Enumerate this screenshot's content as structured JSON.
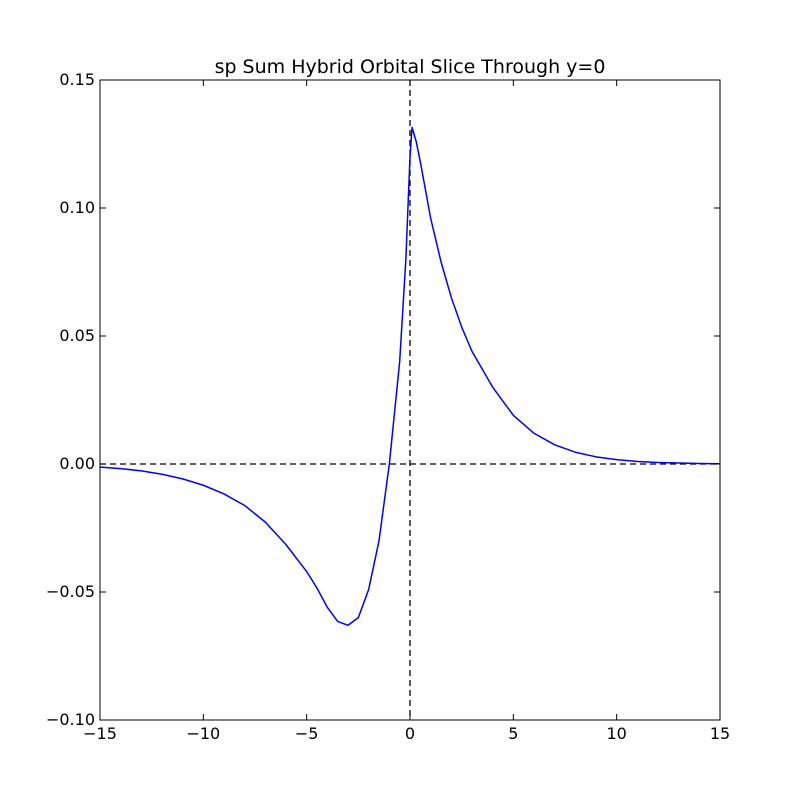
{
  "chart_data": {
    "type": "line",
    "title": "sp Sum Hybrid Orbital Slice Through y=0",
    "xlabel": "",
    "ylabel": "",
    "xlim": [
      -15,
      15
    ],
    "ylim": [
      -0.1,
      0.15
    ],
    "x_ticks": [
      -15,
      -10,
      -5,
      0,
      5,
      10,
      15
    ],
    "x_tick_labels": [
      "−15",
      "−10",
      "−5",
      "0",
      "5",
      "10",
      "15"
    ],
    "y_ticks": [
      -0.1,
      -0.05,
      0.0,
      0.05,
      0.1,
      0.15
    ],
    "y_tick_labels": [
      "−0.10",
      "−0.05",
      "0.00",
      "0.05",
      "0.10",
      "0.15"
    ],
    "grid": false,
    "reference_lines": [
      {
        "orientation": "horizontal",
        "value": 0,
        "style": "dashed",
        "color": "#000000"
      },
      {
        "orientation": "vertical",
        "value": 0,
        "style": "dashed",
        "color": "#000000"
      }
    ],
    "series": [
      {
        "color": "#0000ff",
        "x": [
          -15,
          -14,
          -13,
          -12,
          -11,
          -10,
          -9,
          -8,
          -7,
          -6,
          -5,
          -4.5,
          -4,
          -3.5,
          -3,
          -2.5,
          -2,
          -1.5,
          -1,
          -0.5,
          -0.2,
          0,
          0.1,
          0.3,
          0.5,
          1,
          1.5,
          2,
          2.5,
          3,
          4,
          5,
          6,
          7,
          8,
          9,
          10,
          11,
          12,
          13,
          14,
          15
        ],
        "y": [
          -0.0012,
          -0.0018,
          -0.0027,
          -0.004,
          -0.0058,
          -0.0083,
          -0.0117,
          -0.0162,
          -0.0227,
          -0.0315,
          -0.042,
          -0.0485,
          -0.056,
          -0.0615,
          -0.063,
          -0.06,
          -0.049,
          -0.03,
          0.0,
          0.04,
          0.08,
          0.12,
          0.1315,
          0.126,
          0.118,
          0.096,
          0.079,
          0.065,
          0.0535,
          0.044,
          0.03,
          0.019,
          0.012,
          0.0075,
          0.0046,
          0.0028,
          0.0017,
          0.001,
          0.0006,
          0.0004,
          0.0002,
          0.0001
        ]
      }
    ]
  }
}
